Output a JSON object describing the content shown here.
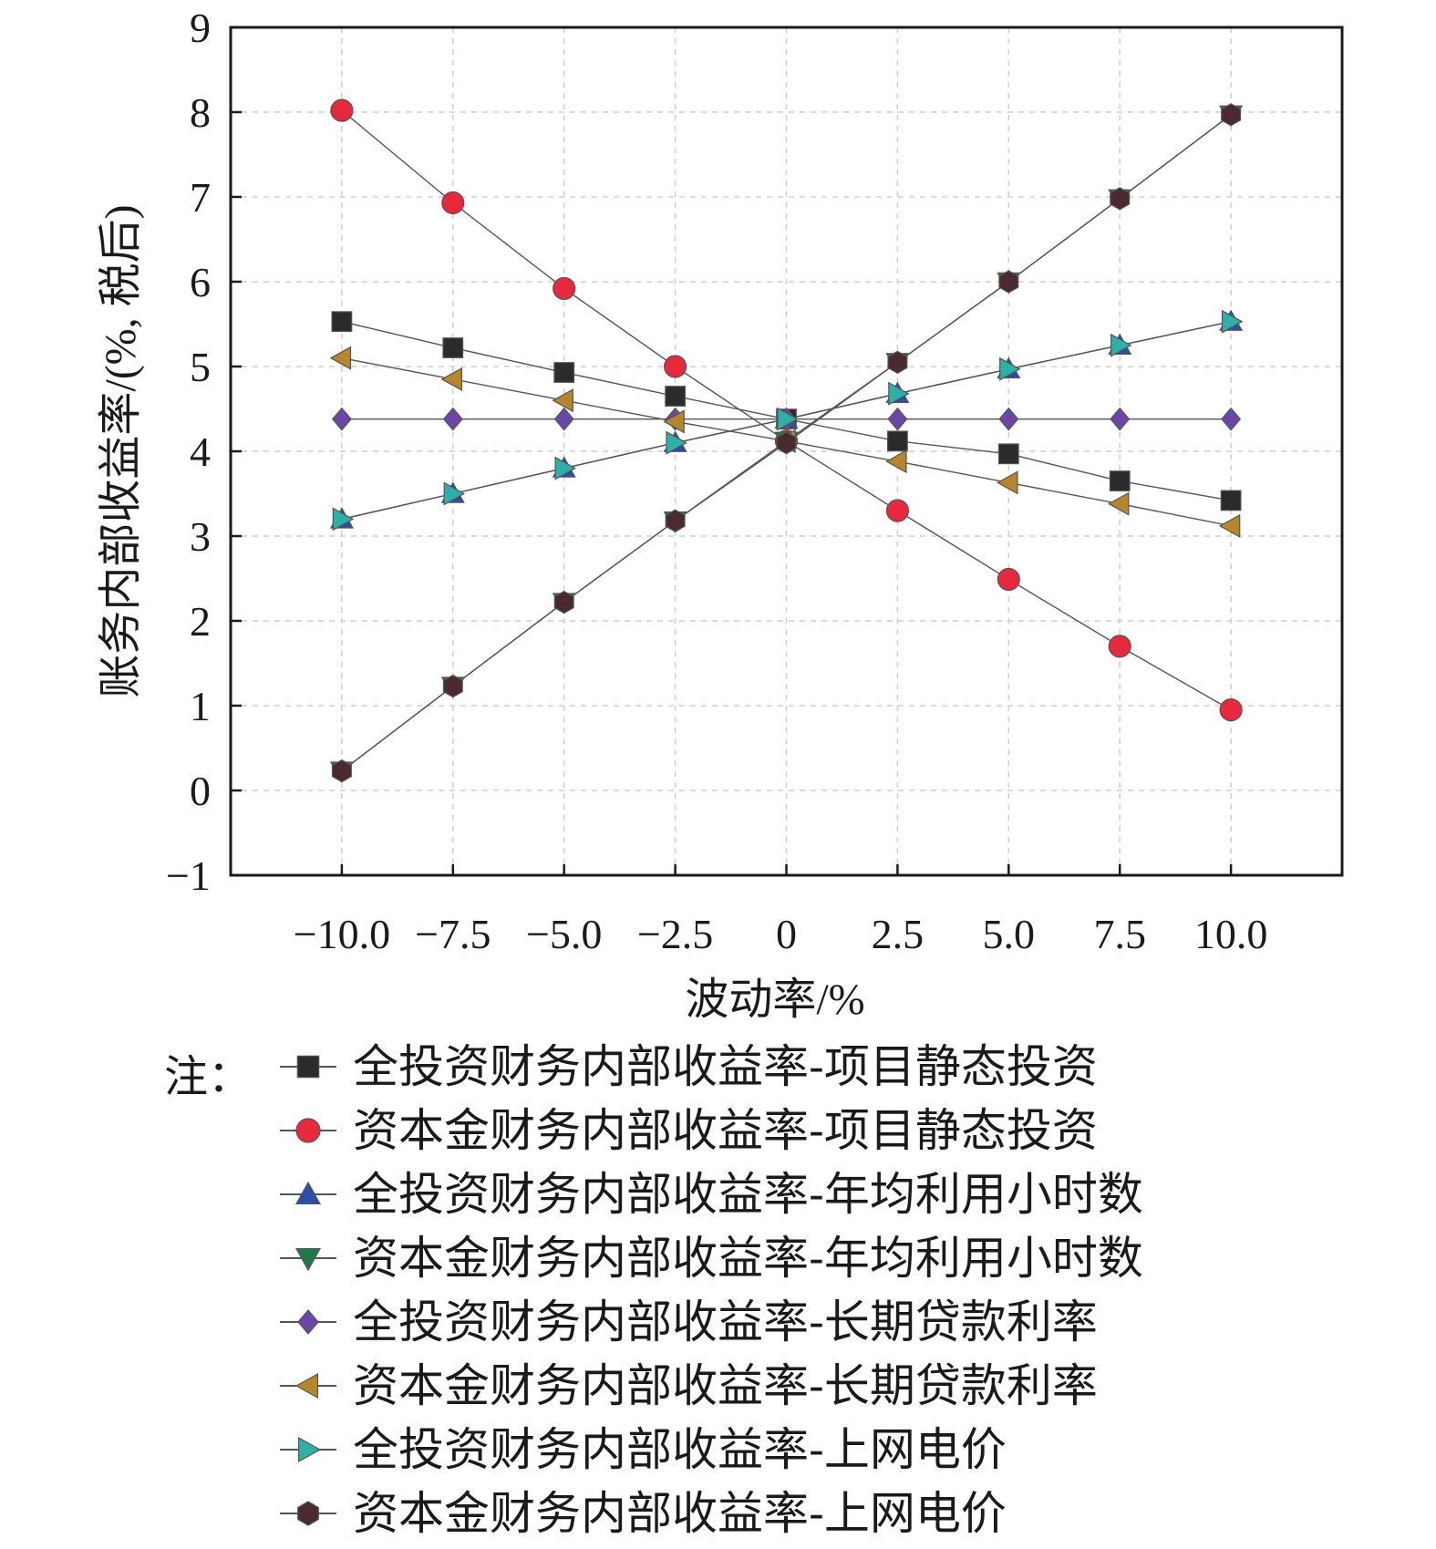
{
  "chart_data": {
    "type": "line",
    "xlabel": "波动率/%",
    "ylabel": "账务内部收益率/(%, 税后)",
    "x": [
      -10.0,
      -7.5,
      -5.0,
      -2.5,
      0,
      2.5,
      5.0,
      7.5,
      10.0
    ],
    "x_tick_labels": [
      "−10.0",
      "−7.5",
      "−5.0",
      "−2.5",
      "0",
      "2.5",
      "5.0",
      "7.5",
      "10.0"
    ],
    "xlim": [
      -12.5,
      12.5
    ],
    "ylim": [
      -1,
      9
    ],
    "y_ticks": [
      -1,
      0,
      1,
      2,
      3,
      4,
      5,
      6,
      7,
      8,
      9
    ],
    "y_tick_labels": [
      "−1",
      "0",
      "1",
      "2",
      "3",
      "4",
      "5",
      "6",
      "7",
      "8",
      "9"
    ],
    "grid": true,
    "legend_position": "bottom",
    "series": [
      {
        "name": "全投资财务内部收益率-项目静态投资",
        "marker": "square",
        "color": "#2b2b2b",
        "values": [
          5.53,
          5.22,
          4.93,
          4.65,
          4.38,
          4.12,
          3.97,
          3.65,
          3.42
        ]
      },
      {
        "name": "资本金财务内部收益率-项目静态投资",
        "marker": "circle",
        "color": "#e8283c",
        "values": [
          8.02,
          6.93,
          5.92,
          5.0,
          4.12,
          3.3,
          2.49,
          1.7,
          0.95
        ]
      },
      {
        "name": "全投资财务内部收益率-年均利用小时数",
        "marker": "triangle-up",
        "color": "#2d4ea8",
        "values": [
          3.2,
          3.5,
          3.8,
          4.1,
          4.38,
          4.68,
          4.97,
          5.25,
          5.53
        ]
      },
      {
        "name": "资本金财务内部收益率-年均利用小时数",
        "marker": "triangle-down",
        "color": "#1f7a4a",
        "values": [
          0.23,
          1.23,
          2.22,
          3.18,
          4.12,
          5.05,
          6.0,
          6.98,
          7.97
        ]
      },
      {
        "name": "全投资财务内部收益率-长期贷款利率",
        "marker": "diamond",
        "color": "#6b46a8",
        "values": [
          4.38,
          4.38,
          4.38,
          4.38,
          4.38,
          4.38,
          4.38,
          4.38,
          4.38
        ]
      },
      {
        "name": "资本金财务内部收益率-长期贷款利率",
        "marker": "triangle-left",
        "color": "#b8862a",
        "values": [
          5.1,
          4.85,
          4.6,
          4.35,
          4.12,
          3.88,
          3.63,
          3.38,
          3.12
        ]
      },
      {
        "name": "全投资财务内部收益率-上网电价",
        "marker": "triangle-right",
        "color": "#2cb0a8",
        "values": [
          3.2,
          3.5,
          3.8,
          4.1,
          4.38,
          4.68,
          4.97,
          5.25,
          5.53
        ]
      },
      {
        "name": "资本金财务内部收益率-上网电价",
        "marker": "hexagon",
        "color": "#4a2a2e",
        "values": [
          0.23,
          1.23,
          2.22,
          3.18,
          4.1,
          5.05,
          6.0,
          6.98,
          7.97
        ]
      }
    ]
  },
  "legend": {
    "note": "注："
  }
}
